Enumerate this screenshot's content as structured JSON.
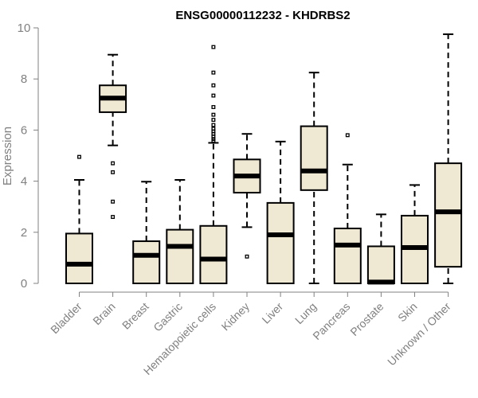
{
  "chart_data": {
    "type": "boxplot",
    "title": "ENSG00000112232 - KHDRBS2",
    "xlabel": "",
    "ylabel": "Expression",
    "ylim": [
      0,
      10
    ],
    "yticks": [
      "0",
      "2",
      "4",
      "6",
      "8",
      "10"
    ],
    "box_fill": "#efe8d2",
    "categories": [
      "Bladder",
      "Brain",
      "Breast",
      "Gastric",
      "Hematopoietic cells",
      "Kidney",
      "Liver",
      "Lung",
      "Pancreas",
      "Prostate",
      "Skin",
      "Unknown / Other"
    ],
    "boxes": [
      {
        "min": 0.0,
        "q1": 0.0,
        "median": 0.75,
        "q3": 1.95,
        "max": 4.05,
        "outliers": [
          4.95
        ]
      },
      {
        "min": 5.4,
        "q1": 6.7,
        "median": 7.25,
        "q3": 7.75,
        "max": 8.95,
        "outliers": [
          4.7,
          4.35,
          3.2,
          2.6
        ]
      },
      {
        "min": 0.0,
        "q1": 0.0,
        "median": 1.1,
        "q3": 1.65,
        "max": 3.98,
        "outliers": []
      },
      {
        "min": 0.0,
        "q1": 0.0,
        "median": 1.45,
        "q3": 2.1,
        "max": 4.05,
        "outliers": []
      },
      {
        "min": 0.0,
        "q1": 0.0,
        "median": 0.95,
        "q3": 2.25,
        "max": 5.5,
        "outliers": [
          9.25,
          8.25,
          7.75,
          7.35,
          6.9,
          6.6,
          6.4,
          6.2,
          6.05,
          5.95,
          5.85,
          5.75,
          5.65,
          5.58
        ]
      },
      {
        "min": 2.2,
        "q1": 3.55,
        "median": 4.2,
        "q3": 4.85,
        "max": 5.85,
        "outliers": [
          1.05
        ]
      },
      {
        "min": 0.0,
        "q1": 0.0,
        "median": 1.9,
        "q3": 3.15,
        "max": 5.55,
        "outliers": []
      },
      {
        "min": 0.0,
        "q1": 3.65,
        "median": 4.4,
        "q3": 6.15,
        "max": 8.25,
        "outliers": []
      },
      {
        "min": 0.0,
        "q1": 0.0,
        "median": 1.5,
        "q3": 2.15,
        "max": 4.65,
        "outliers": [
          5.8
        ]
      },
      {
        "min": 0.0,
        "q1": 0.0,
        "median": 0.05,
        "q3": 1.45,
        "max": 2.7,
        "outliers": []
      },
      {
        "min": 0.0,
        "q1": 0.0,
        "median": 1.4,
        "q3": 2.65,
        "max": 3.85,
        "outliers": []
      },
      {
        "min": 0.0,
        "q1": 0.65,
        "median": 2.8,
        "q3": 4.7,
        "max": 9.75,
        "outliers": []
      }
    ]
  }
}
